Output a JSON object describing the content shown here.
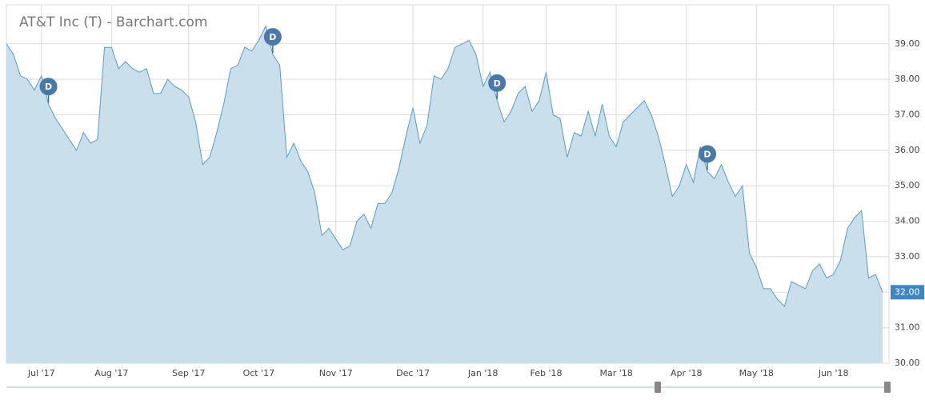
{
  "chart_data": {
    "type": "area",
    "title": "AT&T Inc (T) - Barchart.com",
    "color": "#5b9bc4",
    "fill": "#c9dfec",
    "categories": [
      null,
      null,
      null,
      null,
      null,
      "Jul '17",
      null,
      null,
      null,
      null,
      null,
      null,
      null,
      null,
      null,
      "Aug '17",
      null,
      null,
      null,
      null,
      null,
      null,
      null,
      null,
      null,
      null,
      "Sep '17",
      null,
      null,
      null,
      null,
      null,
      null,
      null,
      null,
      null,
      "Oct '17",
      null,
      null,
      null,
      null,
      null,
      null,
      null,
      null,
      null,
      null,
      "Nov '17",
      null,
      null,
      null,
      null,
      null,
      null,
      null,
      null,
      null,
      null,
      "Dec '17",
      null,
      null,
      null,
      null,
      null,
      null,
      null,
      null,
      null,
      "Jan '18",
      null,
      null,
      null,
      null,
      null,
      null,
      null,
      null,
      "Feb '18",
      null,
      null,
      null,
      null,
      null,
      null,
      null,
      null,
      null,
      "Mar '18",
      null,
      null,
      null,
      null,
      null,
      null,
      null,
      null,
      null,
      "Apr '18",
      null,
      null,
      null,
      null,
      null,
      null,
      null,
      null,
      null,
      "May '18",
      null,
      null,
      null,
      null,
      null,
      null,
      null,
      null,
      null,
      null,
      "Jun '18",
      null,
      null,
      null,
      null,
      null,
      null,
      null
    ],
    "values": [
      39.0,
      38.7,
      38.1,
      38.0,
      37.7,
      38.1,
      37.3,
      36.9,
      36.6,
      36.3,
      36.0,
      36.5,
      36.2,
      36.3,
      38.9,
      38.9,
      38.3,
      38.5,
      38.3,
      38.2,
      38.3,
      37.6,
      37.6,
      38.0,
      37.8,
      37.7,
      37.5,
      36.8,
      35.6,
      35.8,
      36.5,
      37.3,
      38.3,
      38.4,
      38.9,
      38.8,
      39.1,
      39.5,
      38.7,
      38.4,
      35.8,
      36.2,
      35.7,
      35.4,
      34.8,
      33.6,
      33.8,
      33.5,
      33.2,
      33.3,
      34.0,
      34.2,
      33.8,
      34.5,
      34.5,
      34.8,
      35.5,
      36.4,
      37.2,
      36.2,
      36.7,
      38.1,
      38.0,
      38.3,
      38.9,
      39.0,
      39.1,
      38.7,
      37.8,
      38.2,
      37.4,
      36.8,
      37.1,
      37.6,
      37.8,
      37.1,
      37.4,
      38.2,
      37.0,
      36.9,
      35.8,
      36.5,
      36.4,
      37.1,
      36.4,
      37.3,
      36.4,
      36.1,
      36.8,
      37.0,
      37.2,
      37.4,
      37.0,
      36.4,
      35.6,
      34.7,
      35.0,
      35.6,
      35.1,
      36.1,
      35.4,
      35.2,
      35.6,
      35.1,
      34.7,
      35.0,
      33.1,
      32.7,
      32.1,
      32.1,
      31.8,
      31.6,
      32.3,
      32.2,
      32.1,
      32.6,
      32.8,
      32.4,
      32.5,
      32.9,
      33.8,
      34.1,
      34.3,
      32.4,
      32.5,
      32.0
    ],
    "current_price_label": "32.00",
    "dividends": [
      {
        "label": "D",
        "at": 6
      },
      {
        "label": "D",
        "at": 38
      },
      {
        "label": "D",
        "at": 70
      },
      {
        "label": "D",
        "at": 100
      }
    ],
    "ylim": [
      30,
      40.1
    ],
    "yticks": [
      {
        "value": 30,
        "label": "30.00"
      },
      {
        "value": 31,
        "label": "31.00"
      },
      {
        "value": 32,
        "label": "32.00"
      },
      {
        "value": 33,
        "label": "33.00"
      },
      {
        "value": 34,
        "label": "34.00"
      },
      {
        "value": 35,
        "label": "35.00"
      },
      {
        "value": 36,
        "label": "36.00"
      },
      {
        "value": 37,
        "label": "37.00"
      },
      {
        "value": 38,
        "label": "38.00"
      },
      {
        "value": 39,
        "label": "39.00"
      }
    ],
    "grid": true
  }
}
